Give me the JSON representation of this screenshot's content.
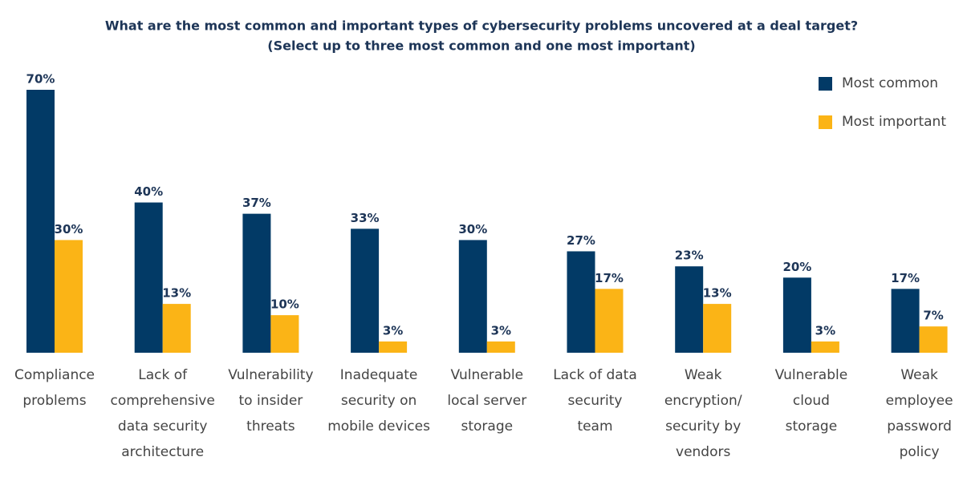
{
  "chart_data": {
    "type": "bar",
    "title": "What are the most common and important types of cybersecurity problems uncovered at a deal target?",
    "subtitle": "(Select up to three most common and one most important)",
    "categories": [
      [
        "Compliance",
        "problems"
      ],
      [
        "Lack of",
        "comprehensive",
        "data security",
        "architecture"
      ],
      [
        "Vulnerability",
        "to insider",
        "threats"
      ],
      [
        "Inadequate",
        "security on",
        "mobile devices"
      ],
      [
        "Vulnerable",
        "local server",
        "storage"
      ],
      [
        "Lack of data",
        "security",
        "team"
      ],
      [
        "Weak",
        "encryption/",
        "security by",
        "vendors"
      ],
      [
        "Vulnerable",
        "cloud",
        "storage"
      ],
      [
        "Weak",
        "employee",
        "password",
        "policy"
      ]
    ],
    "series": [
      {
        "name": "Most common",
        "color": "#023a66",
        "values": [
          70,
          40,
          37,
          33,
          30,
          27,
          23,
          20,
          17
        ],
        "value_labels": [
          "70%",
          "40%",
          "37%",
          "33%",
          "30%",
          "27%",
          "23%",
          "20%",
          "17%"
        ]
      },
      {
        "name": "Most important",
        "color": "#fbb416",
        "values": [
          30,
          13,
          10,
          3,
          3,
          17,
          13,
          3,
          7
        ],
        "value_labels": [
          "30%",
          "13%",
          "10%",
          "3%",
          "3%",
          "17%",
          "13%",
          "3%",
          "7%"
        ]
      }
    ],
    "ylim": [
      0,
      70
    ],
    "legend": "top-right"
  }
}
